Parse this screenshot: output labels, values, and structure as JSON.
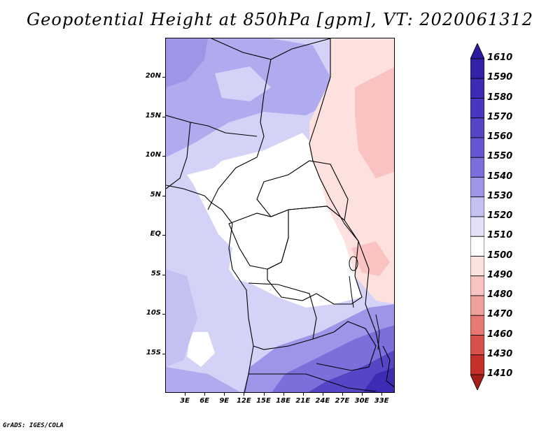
{
  "title": "Geopotential Height at 850hPa [gpm], VT: 2020061312",
  "footer": "GrADS: IGES/COLA",
  "map": {
    "lon_range": [
      0,
      35
    ],
    "lat_range": [
      -20,
      25
    ],
    "lat_labels": [
      "20N",
      "15N",
      "10N",
      "5N",
      "EQ",
      "5S",
      "10S",
      "15S"
    ],
    "lat_values": [
      20,
      15,
      10,
      5,
      0,
      -5,
      -10,
      -15
    ],
    "lon_labels": [
      "3E",
      "6E",
      "9E",
      "12E",
      "15E",
      "18E",
      "21E",
      "24E",
      "27E",
      "30E",
      "33E"
    ],
    "lon_values": [
      3,
      6,
      9,
      12,
      15,
      18,
      21,
      24,
      27,
      30,
      33
    ]
  },
  "colorbar": {
    "labels": [
      "1610",
      "1590",
      "1580",
      "1570",
      "1560",
      "1550",
      "1540",
      "1530",
      "1520",
      "1510",
      "1500",
      "1490",
      "1480",
      "1470",
      "1460",
      "1430",
      "1410"
    ],
    "colors": [
      "#2b1a9e",
      "#3322a8",
      "#3c2cb4",
      "#4637be",
      "#5646c6",
      "#6557cf",
      "#7a6fdb",
      "#9d95e8",
      "#c4c0f2",
      "#e3e1fa",
      "#ffffff",
      "#fde1df",
      "#f8c3c0",
      "#f0a09a",
      "#e67a72",
      "#d9524a",
      "#c3312a",
      "#a51d18"
    ]
  }
}
